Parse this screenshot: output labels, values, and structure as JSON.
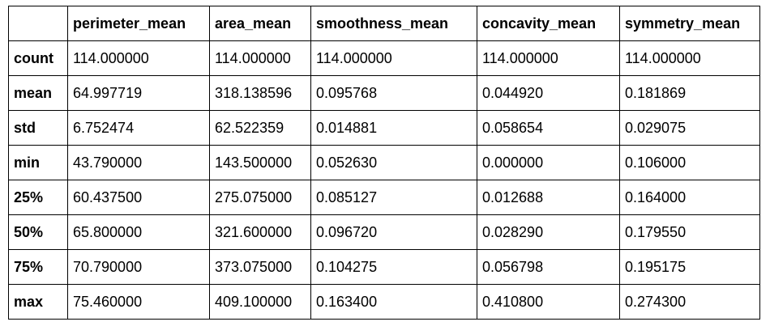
{
  "table": {
    "columns": [
      "",
      "perimeter_mean",
      "area_mean",
      "smoothness_mean",
      "concavity_mean",
      "symmetry_mean"
    ],
    "rows": [
      {
        "label": "count",
        "values": [
          "114.000000",
          "114.000000",
          "114.000000",
          "114.000000",
          "114.000000"
        ]
      },
      {
        "label": "mean",
        "values": [
          "64.997719",
          "318.138596",
          "0.095768",
          "0.044920",
          "0.181869"
        ]
      },
      {
        "label": "std",
        "values": [
          "6.752474",
          "62.522359",
          "0.014881",
          "0.058654",
          "0.029075"
        ]
      },
      {
        "label": "min",
        "values": [
          "43.790000",
          "143.500000",
          "0.052630",
          "0.000000",
          "0.106000"
        ]
      },
      {
        "label": "25%",
        "values": [
          "60.437500",
          "275.075000",
          "0.085127",
          "0.012688",
          "0.164000"
        ]
      },
      {
        "label": "50%",
        "values": [
          "65.800000",
          "321.600000",
          "0.096720",
          "0.028290",
          "0.179550"
        ]
      },
      {
        "label": "75%",
        "values": [
          "70.790000",
          "373.075000",
          "0.104275",
          "0.056798",
          "0.195175"
        ]
      },
      {
        "label": "max",
        "values": [
          "75.460000",
          "409.100000",
          "0.163400",
          "0.410800",
          "0.274300"
        ]
      }
    ]
  }
}
